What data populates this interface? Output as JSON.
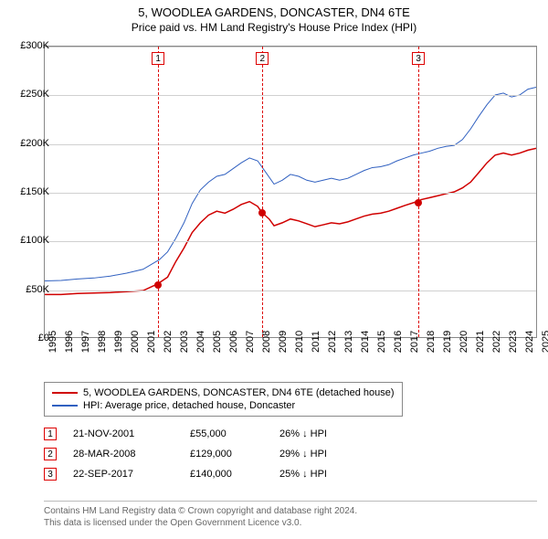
{
  "title": "5, WOODLEA GARDENS, DONCASTER, DN4 6TE",
  "subtitle": "Price paid vs. HM Land Registry's House Price Index (HPI)",
  "chart": {
    "type": "line",
    "xlim": [
      1995,
      2025
    ],
    "ylim": [
      0,
      300000
    ],
    "ytick_step": 50000,
    "yticks": [
      "£0",
      "£50K",
      "£100K",
      "£150K",
      "£200K",
      "£250K",
      "£300K"
    ],
    "xticks": [
      1995,
      1996,
      1997,
      1998,
      1999,
      2000,
      2001,
      2002,
      2003,
      2004,
      2005,
      2006,
      2007,
      2008,
      2009,
      2010,
      2011,
      2012,
      2013,
      2014,
      2015,
      2016,
      2017,
      2018,
      2019,
      2020,
      2021,
      2022,
      2023,
      2024,
      2025
    ],
    "background_color": "#ffffff",
    "grid_color": "#d0d0d0",
    "border_color": "#888888",
    "series": [
      {
        "name": "property",
        "label": "5, WOODLEA GARDENS, DONCASTER, DN4 6TE (detached house)",
        "color": "#d00000",
        "width": 1.5,
        "data": [
          [
            1995,
            44000
          ],
          [
            1996,
            44000
          ],
          [
            1997,
            45000
          ],
          [
            1998,
            45500
          ],
          [
            1999,
            46000
          ],
          [
            2000,
            47000
          ],
          [
            2001,
            48000
          ],
          [
            2001.9,
            55000
          ],
          [
            2002.5,
            62000
          ],
          [
            2003,
            78000
          ],
          [
            2003.5,
            92000
          ],
          [
            2004,
            108000
          ],
          [
            2004.5,
            118000
          ],
          [
            2005,
            126000
          ],
          [
            2005.5,
            130000
          ],
          [
            2006,
            128000
          ],
          [
            2006.5,
            132000
          ],
          [
            2007,
            137000
          ],
          [
            2007.5,
            140000
          ],
          [
            2008,
            135000
          ],
          [
            2008.24,
            129000
          ],
          [
            2008.7,
            122000
          ],
          [
            2009,
            115000
          ],
          [
            2009.5,
            118000
          ],
          [
            2010,
            122000
          ],
          [
            2010.5,
            120000
          ],
          [
            2011,
            117000
          ],
          [
            2011.5,
            114000
          ],
          [
            2012,
            116000
          ],
          [
            2012.5,
            118000
          ],
          [
            2013,
            117000
          ],
          [
            2013.5,
            119000
          ],
          [
            2014,
            122000
          ],
          [
            2014.5,
            125000
          ],
          [
            2015,
            127000
          ],
          [
            2015.5,
            128000
          ],
          [
            2016,
            130000
          ],
          [
            2016.5,
            133000
          ],
          [
            2017,
            136000
          ],
          [
            2017.73,
            140000
          ],
          [
            2018,
            142000
          ],
          [
            2018.5,
            144000
          ],
          [
            2019,
            146000
          ],
          [
            2019.5,
            148000
          ],
          [
            2020,
            150000
          ],
          [
            2020.5,
            154000
          ],
          [
            2021,
            160000
          ],
          [
            2021.5,
            170000
          ],
          [
            2022,
            180000
          ],
          [
            2022.5,
            188000
          ],
          [
            2023,
            190000
          ],
          [
            2023.5,
            188000
          ],
          [
            2024,
            190000
          ],
          [
            2024.5,
            193000
          ],
          [
            2025,
            195000
          ]
        ]
      },
      {
        "name": "hpi",
        "label": "HPI: Average price, detached house, Doncaster",
        "color": "#3060c0",
        "width": 1,
        "data": [
          [
            1995,
            58000
          ],
          [
            1996,
            58500
          ],
          [
            1997,
            60000
          ],
          [
            1998,
            61000
          ],
          [
            1999,
            63000
          ],
          [
            2000,
            66000
          ],
          [
            2001,
            70000
          ],
          [
            2002,
            80000
          ],
          [
            2002.5,
            88000
          ],
          [
            2003,
            102000
          ],
          [
            2003.5,
            118000
          ],
          [
            2004,
            138000
          ],
          [
            2004.5,
            152000
          ],
          [
            2005,
            160000
          ],
          [
            2005.5,
            166000
          ],
          [
            2006,
            168000
          ],
          [
            2006.5,
            174000
          ],
          [
            2007,
            180000
          ],
          [
            2007.5,
            185000
          ],
          [
            2008,
            182000
          ],
          [
            2008.5,
            170000
          ],
          [
            2009,
            158000
          ],
          [
            2009.5,
            162000
          ],
          [
            2010,
            168000
          ],
          [
            2010.5,
            166000
          ],
          [
            2011,
            162000
          ],
          [
            2011.5,
            160000
          ],
          [
            2012,
            162000
          ],
          [
            2012.5,
            164000
          ],
          [
            2013,
            162000
          ],
          [
            2013.5,
            164000
          ],
          [
            2014,
            168000
          ],
          [
            2014.5,
            172000
          ],
          [
            2015,
            175000
          ],
          [
            2015.5,
            176000
          ],
          [
            2016,
            178000
          ],
          [
            2016.5,
            182000
          ],
          [
            2017,
            185000
          ],
          [
            2017.5,
            188000
          ],
          [
            2018,
            190000
          ],
          [
            2018.5,
            192000
          ],
          [
            2019,
            195000
          ],
          [
            2019.5,
            197000
          ],
          [
            2020,
            198000
          ],
          [
            2020.5,
            204000
          ],
          [
            2021,
            215000
          ],
          [
            2021.5,
            228000
          ],
          [
            2022,
            240000
          ],
          [
            2022.5,
            250000
          ],
          [
            2023,
            252000
          ],
          [
            2023.5,
            248000
          ],
          [
            2024,
            250000
          ],
          [
            2024.5,
            256000
          ],
          [
            2025,
            258000
          ]
        ]
      }
    ],
    "markers": [
      {
        "n": "1",
        "x": 2001.9,
        "y": 55000
      },
      {
        "n": "2",
        "x": 2008.24,
        "y": 129000
      },
      {
        "n": "3",
        "x": 2017.73,
        "y": 140000
      }
    ]
  },
  "legend": [
    {
      "color": "#d00000",
      "label": "5, WOODLEA GARDENS, DONCASTER, DN4 6TE (detached house)"
    },
    {
      "color": "#3060c0",
      "label": "HPI: Average price, detached house, Doncaster"
    }
  ],
  "events": [
    {
      "n": "1",
      "date": "21-NOV-2001",
      "price": "£55,000",
      "diff": "26% ↓ HPI"
    },
    {
      "n": "2",
      "date": "28-MAR-2008",
      "price": "£129,000",
      "diff": "29% ↓ HPI"
    },
    {
      "n": "3",
      "date": "22-SEP-2017",
      "price": "£140,000",
      "diff": "25% ↓ HPI"
    }
  ],
  "footer": {
    "line1": "Contains HM Land Registry data © Crown copyright and database right 2024.",
    "line2": "This data is licensed under the Open Government Licence v3.0."
  }
}
